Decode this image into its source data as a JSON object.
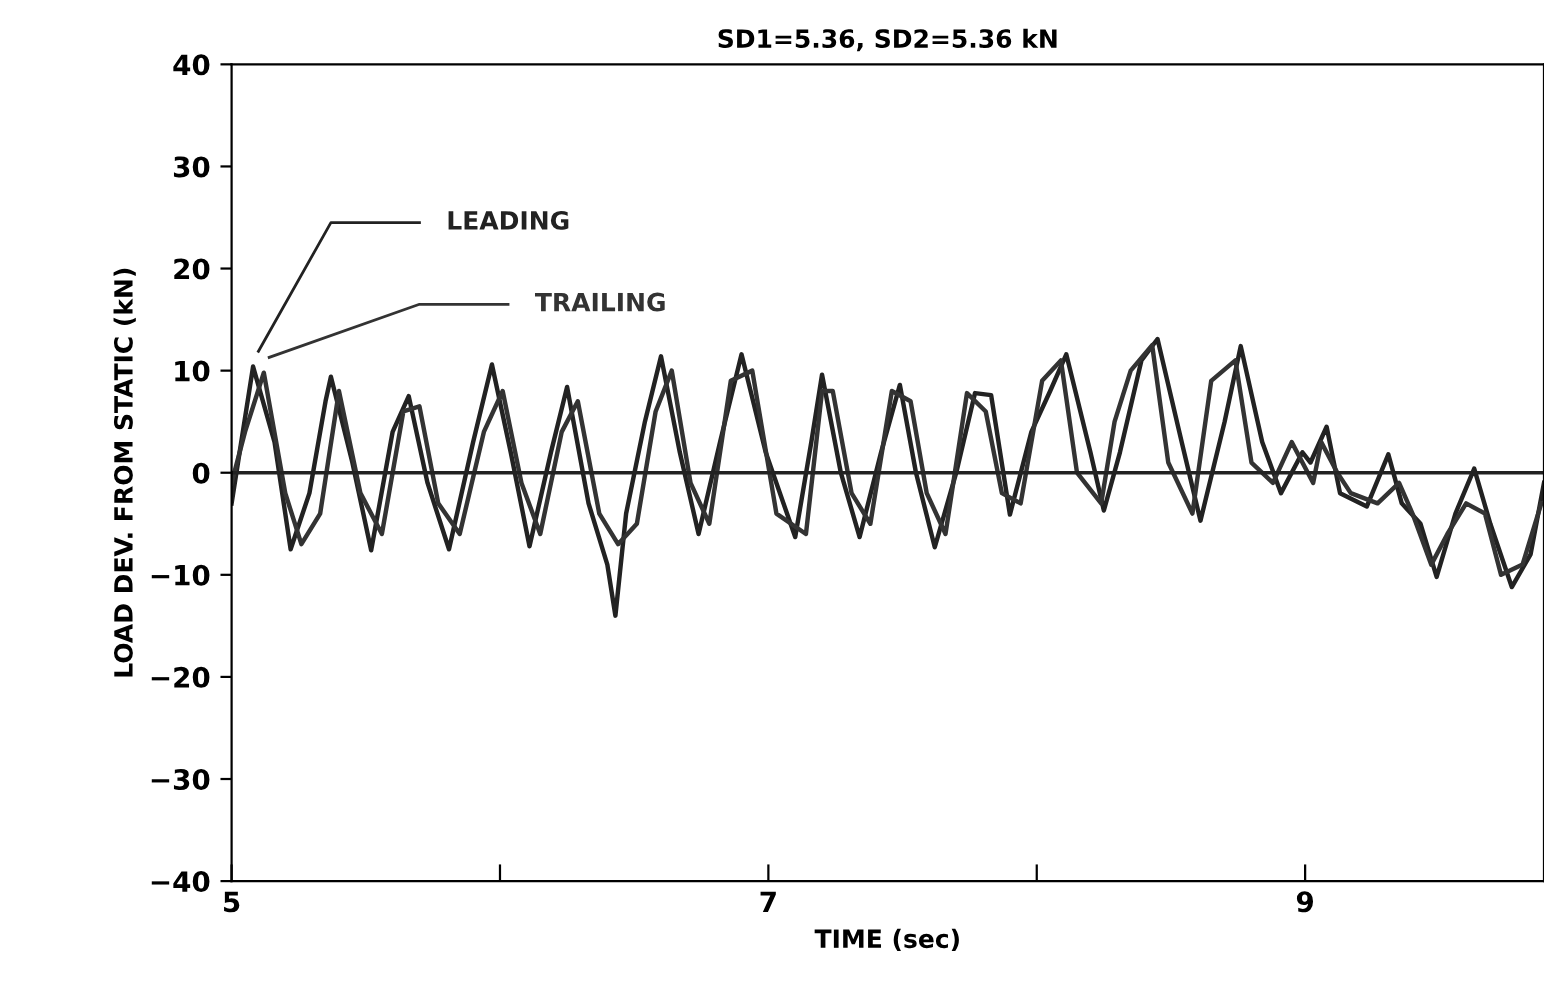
{
  "chart_data": {
    "type": "line",
    "title": "SD1=5.36, SD2=5.36 kN",
    "xlabel": "TIME (sec)",
    "ylabel": "LOAD DEV. FROM STATIC (kN)",
    "xlim": [
      5,
      9.89
    ],
    "xticks": [
      5,
      {
        "value": 6,
        "label": null
      },
      7,
      {
        "value": 8,
        "label": null
      },
      9
    ],
    "ylim": [
      -40,
      40
    ],
    "yticks": [
      -40,
      -30,
      -20,
      -10,
      0,
      10,
      20,
      30,
      40
    ],
    "grid": false,
    "legend": false,
    "marker": "none",
    "line_style": "solid",
    "ref_lines": [
      {
        "axis": "y",
        "value": 0,
        "color": "#222222"
      }
    ],
    "series": [
      {
        "name": "LEADING",
        "color": "#222222",
        "x": [
          5.0,
          5.08,
          5.16,
          5.22,
          5.29,
          5.35,
          5.37,
          5.45,
          5.52,
          5.6,
          5.66,
          5.73,
          5.81,
          5.9,
          5.97,
          6.04,
          6.11,
          6.19,
          6.25,
          6.33,
          6.4,
          6.43,
          6.47,
          6.54,
          6.6,
          6.67,
          6.74,
          6.82,
          6.9,
          6.99,
          7.1,
          7.16,
          7.2,
          7.27,
          7.34,
          7.42,
          7.49,
          7.55,
          7.62,
          7.7,
          7.77,
          7.83,
          7.9,
          7.98,
          8.05,
          8.11,
          8.2,
          8.25,
          8.31,
          8.39,
          8.45,
          8.54,
          8.61,
          8.7,
          8.76,
          8.84,
          8.91,
          8.99,
          9.02,
          9.08,
          9.13,
          9.23,
          9.31,
          9.36,
          9.43,
          9.49,
          9.56,
          9.63,
          9.69,
          9.77,
          9.84,
          9.89
        ],
        "values": [
          -3,
          10.4,
          3,
          -7.5,
          -2,
          7,
          9.4,
          1,
          -7.6,
          4,
          7.5,
          -1,
          -7.5,
          3,
          10.6,
          2,
          -7.2,
          2,
          8.4,
          -3,
          -9,
          -14,
          -4,
          5,
          11.4,
          2,
          -6,
          3,
          11.6,
          2,
          -6.3,
          3,
          9.6,
          0,
          -6.3,
          2,
          8.6,
          0,
          -7.3,
          0,
          7.8,
          7.6,
          -4.1,
          4,
          8,
          11.6,
          2,
          -3.7,
          2,
          11,
          13.1,
          3,
          -4.7,
          5,
          12.4,
          3,
          -2,
          2,
          1,
          4.5,
          -2,
          -3.3,
          1.8,
          -3,
          -5,
          -10.2,
          -4,
          0.4,
          -5,
          -11.2,
          -8,
          -1
        ]
      },
      {
        "name": "TRAILING",
        "color": "#333333",
        "x": [
          5.0,
          5.05,
          5.12,
          5.2,
          5.26,
          5.33,
          5.4,
          5.48,
          5.56,
          5.64,
          5.7,
          5.77,
          5.85,
          5.94,
          6.01,
          6.08,
          6.15,
          6.23,
          6.29,
          6.37,
          6.44,
          6.51,
          6.58,
          6.64,
          6.71,
          6.78,
          6.86,
          6.94,
          7.03,
          7.14,
          7.2,
          7.24,
          7.31,
          7.38,
          7.46,
          7.53,
          7.59,
          7.66,
          7.74,
          7.81,
          7.87,
          7.94,
          8.02,
          8.09,
          8.15,
          8.24,
          8.29,
          8.35,
          8.43,
          8.49,
          8.58,
          8.65,
          8.74,
          8.8,
          8.88,
          8.95,
          9.03,
          9.06,
          9.12,
          9.17,
          9.27,
          9.35,
          9.4,
          9.47,
          9.53,
          9.6,
          9.67,
          9.73,
          9.81,
          9.88
        ],
        "values": [
          -1,
          4,
          9.8,
          -2,
          -7,
          -4,
          8,
          -2,
          -6,
          6,
          6.5,
          -3,
          -6,
          4,
          8,
          -1,
          -6,
          4,
          7,
          -4,
          -7,
          -5,
          6,
          10,
          -1,
          -5,
          9,
          10,
          -4,
          -6,
          8,
          8,
          -2,
          -5,
          8,
          7,
          -2,
          -6,
          7.8,
          6,
          -2,
          -3,
          9,
          11,
          0,
          -3,
          5,
          10,
          12.5,
          1,
          -4,
          9,
          11,
          1,
          -1,
          3,
          -1,
          3,
          0,
          -2,
          -3,
          -1,
          -4,
          -9,
          -6,
          -3,
          -4,
          -10,
          -9,
          -3
        ]
      }
    ]
  }
}
